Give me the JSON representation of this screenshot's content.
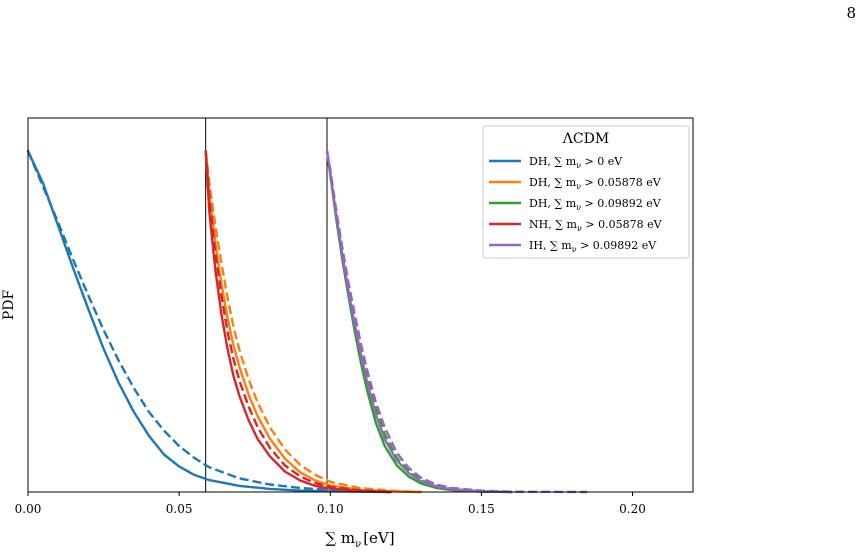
{
  "page": {
    "number": "8"
  },
  "chart_data": {
    "type": "line",
    "title": "",
    "xlabel": "∑ m",
    "xlabel_sub": "ν",
    "xlabel_unit": "[eV]",
    "ylabel": "PDF",
    "xlim": [
      0.0,
      0.22
    ],
    "ylim": [
      0.0,
      1.0
    ],
    "xticks": [
      0.0,
      0.05,
      0.1,
      0.15,
      0.2
    ],
    "xtick_labels": [
      "0.00",
      "0.05",
      "0.10",
      "0.15",
      "0.20"
    ],
    "yticks_shown": false,
    "grid": false,
    "vlines": [
      0.05878,
      0.09892
    ],
    "legend": {
      "title": "ΛCDM",
      "placement": "top-right",
      "entries": [
        {
          "prefix": "DH, ∑ m",
          "sub": "ν",
          "suffix": " > 0 eV",
          "color": "#1f77b4"
        },
        {
          "prefix": "DH, ∑ m",
          "sub": "ν",
          "suffix": " > 0.05878 eV",
          "color": "#ff7f0e"
        },
        {
          "prefix": "DH, ∑ m",
          "sub": "ν",
          "suffix": " > 0.09892 eV",
          "color": "#2ca02c"
        },
        {
          "prefix": "NH, ∑ m",
          "sub": "ν",
          "suffix": " > 0.05878 eV",
          "color": "#d62728"
        },
        {
          "prefix": "IH, ∑ m",
          "sub": "ν",
          "suffix": " > 0.09892 eV",
          "color": "#9467bd"
        }
      ]
    },
    "series": [
      {
        "color": "#1f77b4",
        "style": "solid",
        "x": [
          0.0,
          0.005,
          0.01,
          0.015,
          0.02,
          0.025,
          0.03,
          0.035,
          0.04,
          0.045,
          0.05,
          0.055,
          0.06,
          0.07,
          0.08,
          0.09,
          0.1,
          0.11,
          0.12
        ],
        "y": [
          1.0,
          0.905,
          0.78,
          0.655,
          0.535,
          0.42,
          0.32,
          0.235,
          0.165,
          0.11,
          0.075,
          0.05,
          0.035,
          0.018,
          0.009,
          0.004,
          0.002,
          0.001,
          0.0
        ]
      },
      {
        "color": "#1f77b4",
        "style": "dashed",
        "x": [
          0.0,
          0.005,
          0.01,
          0.015,
          0.02,
          0.025,
          0.03,
          0.035,
          0.04,
          0.045,
          0.05,
          0.055,
          0.06,
          0.07,
          0.08,
          0.09,
          0.1,
          0.11,
          0.12
        ],
        "y": [
          1.0,
          0.895,
          0.79,
          0.68,
          0.575,
          0.475,
          0.385,
          0.305,
          0.235,
          0.18,
          0.135,
          0.1,
          0.072,
          0.04,
          0.022,
          0.012,
          0.006,
          0.003,
          0.0
        ]
      },
      {
        "color": "#ff7f0e",
        "style": "solid",
        "x": [
          0.05878,
          0.06,
          0.062,
          0.064,
          0.066,
          0.068,
          0.07,
          0.073,
          0.076,
          0.08,
          0.085,
          0.09,
          0.095,
          0.1,
          0.11,
          0.12,
          0.13
        ],
        "y": [
          1.0,
          0.875,
          0.73,
          0.61,
          0.51,
          0.43,
          0.365,
          0.285,
          0.222,
          0.157,
          0.098,
          0.058,
          0.034,
          0.019,
          0.006,
          0.002,
          0.0
        ]
      },
      {
        "color": "#ff7f0e",
        "style": "dashed",
        "x": [
          0.05878,
          0.06,
          0.062,
          0.064,
          0.066,
          0.068,
          0.07,
          0.073,
          0.076,
          0.08,
          0.085,
          0.09,
          0.095,
          0.1,
          0.11,
          0.12,
          0.13
        ],
        "y": [
          1.0,
          0.905,
          0.78,
          0.67,
          0.57,
          0.485,
          0.415,
          0.33,
          0.262,
          0.19,
          0.125,
          0.08,
          0.05,
          0.03,
          0.011,
          0.004,
          0.0
        ]
      },
      {
        "color": "#d62728",
        "style": "solid",
        "x": [
          0.05878,
          0.06,
          0.062,
          0.064,
          0.066,
          0.068,
          0.07,
          0.073,
          0.076,
          0.08,
          0.085,
          0.09,
          0.095,
          0.1,
          0.11,
          0.12
        ],
        "y": [
          1.0,
          0.82,
          0.65,
          0.52,
          0.42,
          0.34,
          0.28,
          0.21,
          0.155,
          0.105,
          0.06,
          0.034,
          0.018,
          0.01,
          0.003,
          0.0
        ]
      },
      {
        "color": "#d62728",
        "style": "dashed",
        "x": [
          0.05878,
          0.06,
          0.062,
          0.064,
          0.066,
          0.068,
          0.07,
          0.073,
          0.076,
          0.08,
          0.085,
          0.09,
          0.095,
          0.1,
          0.11,
          0.12
        ],
        "y": [
          1.0,
          0.86,
          0.7,
          0.575,
          0.47,
          0.39,
          0.325,
          0.25,
          0.19,
          0.13,
          0.078,
          0.046,
          0.026,
          0.015,
          0.005,
          0.0
        ]
      },
      {
        "color": "#2ca02c",
        "style": "solid",
        "x": [
          0.09892,
          0.1,
          0.102,
          0.104,
          0.106,
          0.108,
          0.11,
          0.112,
          0.115,
          0.118,
          0.122,
          0.126,
          0.13,
          0.135,
          0.14,
          0.15,
          0.16
        ],
        "y": [
          1.0,
          0.93,
          0.8,
          0.68,
          0.575,
          0.475,
          0.385,
          0.305,
          0.205,
          0.135,
          0.078,
          0.045,
          0.025,
          0.012,
          0.006,
          0.001,
          0.0
        ]
      },
      {
        "color": "#2ca02c",
        "style": "dashed",
        "x": [
          0.09892,
          0.1,
          0.102,
          0.104,
          0.106,
          0.108,
          0.11,
          0.112,
          0.115,
          0.118,
          0.122,
          0.126,
          0.13,
          0.135,
          0.14,
          0.15,
          0.16
        ],
        "y": [
          1.0,
          0.94,
          0.815,
          0.7,
          0.6,
          0.505,
          0.42,
          0.345,
          0.245,
          0.17,
          0.1,
          0.06,
          0.035,
          0.018,
          0.009,
          0.002,
          0.0
        ]
      },
      {
        "color": "#9467bd",
        "style": "solid",
        "x": [
          0.09892,
          0.1,
          0.102,
          0.104,
          0.106,
          0.108,
          0.11,
          0.112,
          0.115,
          0.118,
          0.122,
          0.126,
          0.13,
          0.135,
          0.14,
          0.15,
          0.16
        ],
        "y": [
          1.0,
          0.935,
          0.81,
          0.695,
          0.59,
          0.495,
          0.41,
          0.33,
          0.23,
          0.155,
          0.092,
          0.055,
          0.032,
          0.016,
          0.008,
          0.002,
          0.0
        ]
      },
      {
        "color": "#9467bd",
        "style": "dashed",
        "x": [
          0.09892,
          0.1,
          0.102,
          0.104,
          0.106,
          0.108,
          0.11,
          0.112,
          0.115,
          0.118,
          0.122,
          0.126,
          0.13,
          0.135,
          0.14,
          0.15,
          0.16,
          0.185
        ],
        "y": [
          1.0,
          0.945,
          0.825,
          0.715,
          0.615,
          0.525,
          0.44,
          0.365,
          0.265,
          0.19,
          0.115,
          0.07,
          0.042,
          0.022,
          0.012,
          0.004,
          0.001,
          0.0
        ]
      }
    ]
  }
}
